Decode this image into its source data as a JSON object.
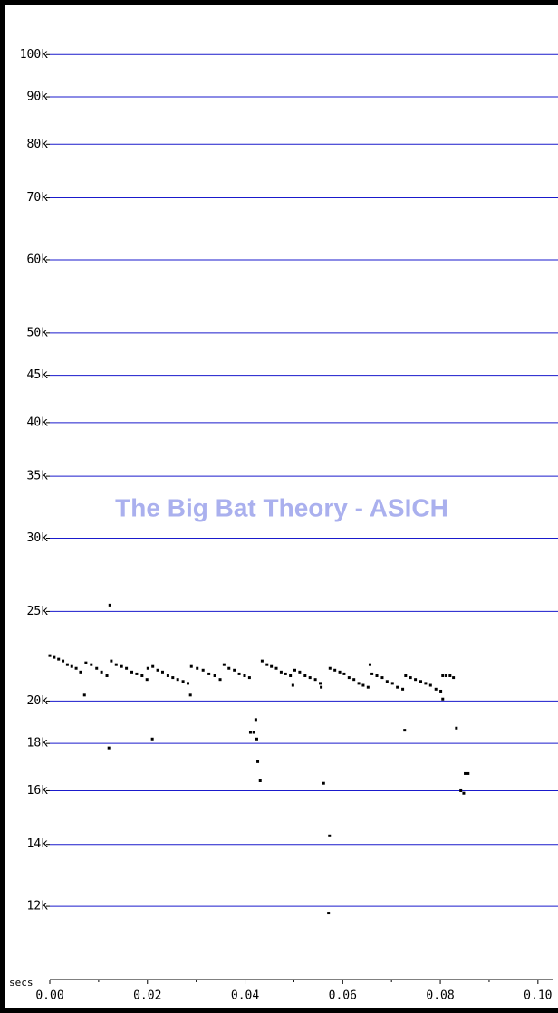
{
  "chart_data": {
    "type": "scatter",
    "title": "The Big Bat Theory - ASICH",
    "x_label": "secs",
    "ylog": true,
    "grid": true,
    "grid_color": "#1a1acc",
    "xlim": [
      0,
      0.103
    ],
    "ylim": [
      10000,
      112000
    ],
    "xticks": [
      {
        "value": 0,
        "label": "0.00"
      },
      {
        "value": 0.02,
        "label": "0.02"
      },
      {
        "value": 0.04,
        "label": "0.04"
      },
      {
        "value": 0.06,
        "label": "0.06"
      },
      {
        "value": 0.08,
        "label": "0.08"
      },
      {
        "value": 0.1,
        "label": "0.10"
      }
    ],
    "x_minor_ticks": [
      0.01,
      0.03,
      0.05,
      0.07,
      0.09
    ],
    "yticks": [
      {
        "value": 12000,
        "label": "12k"
      },
      {
        "value": 14000,
        "label": "14k"
      },
      {
        "value": 16000,
        "label": "16k"
      },
      {
        "value": 18000,
        "label": "18k"
      },
      {
        "value": 20000,
        "label": "20k"
      },
      {
        "value": 25000,
        "label": "25k"
      },
      {
        "value": 30000,
        "label": "30k"
      },
      {
        "value": 35000,
        "label": "35k"
      },
      {
        "value": 40000,
        "label": "40k"
      },
      {
        "value": 45000,
        "label": "45k"
      },
      {
        "value": 50000,
        "label": "50k"
      },
      {
        "value": 60000,
        "label": "60k"
      },
      {
        "value": 70000,
        "label": "70k"
      },
      {
        "value": 80000,
        "label": "80k"
      },
      {
        "value": 90000,
        "label": "90k"
      },
      {
        "value": 100000,
        "label": "100k"
      }
    ],
    "series": [
      {
        "color": "#000000",
        "x": [
          0.0,
          0.0009,
          0.0018,
          0.0027,
          0.0036,
          0.0045,
          0.0054,
          0.0063,
          0.0074,
          0.0085,
          0.0096,
          0.0106,
          0.0117,
          0.0126,
          0.0136,
          0.0147,
          0.0157,
          0.0168,
          0.0178,
          0.0189,
          0.0199,
          0.0201,
          0.0211,
          0.0221,
          0.0231,
          0.0242,
          0.0252,
          0.0262,
          0.0273,
          0.0283,
          0.029,
          0.0302,
          0.0314,
          0.0326,
          0.0338,
          0.0349,
          0.0357,
          0.0367,
          0.0378,
          0.0388,
          0.0399,
          0.0409,
          0.0435,
          0.0445,
          0.0454,
          0.0464,
          0.0474,
          0.0483,
          0.0493,
          0.0502,
          0.0512,
          0.0523,
          0.0533,
          0.0544,
          0.0554,
          0.0574,
          0.0584,
          0.0594,
          0.0603,
          0.0613,
          0.0623,
          0.0633,
          0.0642,
          0.0652,
          0.066,
          0.067,
          0.0681,
          0.0691,
          0.0702,
          0.0712,
          0.0723,
          0.0729,
          0.0739,
          0.0749,
          0.076,
          0.077,
          0.078,
          0.0791,
          0.0801,
          0.0805,
          0.0812,
          0.082,
          0.0827,
          0.0123,
          0.0071,
          0.0121,
          0.021,
          0.0288,
          0.0411,
          0.0418,
          0.0422,
          0.0424,
          0.0426,
          0.0431,
          0.0498,
          0.0556,
          0.0561,
          0.0573,
          0.0571,
          0.0656,
          0.0727,
          0.0805,
          0.0833,
          0.0842,
          0.0848,
          0.0851,
          0.0857
        ],
        "values": [
          22400,
          22300,
          22200,
          22100,
          21900,
          21800,
          21700,
          21500,
          22000,
          21900,
          21700,
          21500,
          21300,
          22100,
          21900,
          21800,
          21700,
          21500,
          21400,
          21300,
          21100,
          21700,
          21800,
          21600,
          21500,
          21300,
          21200,
          21100,
          21000,
          20900,
          21800,
          21700,
          21600,
          21400,
          21300,
          21100,
          21900,
          21700,
          21600,
          21400,
          21300,
          21200,
          22100,
          21900,
          21800,
          21700,
          21500,
          21400,
          21300,
          21600,
          21500,
          21300,
          21200,
          21100,
          20900,
          21700,
          21600,
          21500,
          21400,
          21200,
          21100,
          20900,
          20800,
          20700,
          21400,
          21300,
          21200,
          21000,
          20900,
          20700,
          20600,
          21300,
          21200,
          21100,
          21000,
          20900,
          20800,
          20600,
          20500,
          21300,
          21300,
          21300,
          21200,
          25400,
          20300,
          17800,
          18200,
          20300,
          18500,
          18500,
          19100,
          18200,
          17200,
          16400,
          20800,
          20700,
          16300,
          14300,
          11800,
          21900,
          18600,
          20100,
          18700,
          16000,
          15900,
          16700,
          16700
        ]
      }
    ]
  }
}
